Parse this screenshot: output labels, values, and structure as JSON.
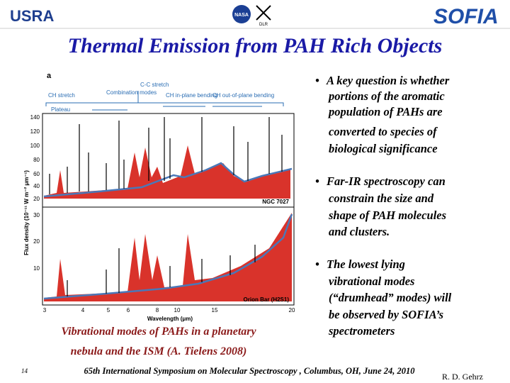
{
  "header": {
    "left_logo": "USRA",
    "center_logo": "NASA",
    "center_logo_2": "DLR",
    "right_logo": "SOFIA"
  },
  "title": "Thermal Emission from PAH Rich Objects",
  "figure": {
    "panel_label": "a",
    "bands": [
      "CH stretch",
      "Plateau",
      "Combination modes",
      "C-C stretch",
      "CH in-plane bending",
      "CH out-of-plane bending"
    ],
    "y_label": "Flux density (10⁻¹¹ W m⁻² μm⁻¹)",
    "x_label": "Wavelength (μm)",
    "upper_yticks": [
      "140",
      "120",
      "100",
      "80",
      "60",
      "40",
      "20"
    ],
    "lower_yticks": [
      "30",
      "20",
      "10"
    ],
    "xticks": [
      "3",
      "4",
      "5",
      "6",
      "8",
      "10",
      "15",
      "20"
    ],
    "upper_object": "NGC 7027",
    "lower_object": "Orion Bar (H2S1)"
  },
  "bullets": [
    [
      "A key question is whether",
      "portions of the aromatic",
      "population of PAHs are",
      "converted to species of",
      "biological significance"
    ],
    [
      "Far-IR spectroscopy can",
      "constrain the size and",
      "shape of PAH molecules",
      "and clusters."
    ],
    [
      "The lowest lying",
      "vibrational modes",
      "(“drumhead” modes) will",
      "be observed by SOFIA’s",
      "spectrometers"
    ]
  ],
  "caption": [
    "Vibrational modes of PAHs in a planetary",
    "nebula and the ISM (A. Tielens 2008)"
  ],
  "footer": {
    "page": "14",
    "conference": "65th International Symposium on Molecular Spectroscopy , Columbus, OH, June 24, 2010",
    "author": "R. D. Gehrz"
  }
}
